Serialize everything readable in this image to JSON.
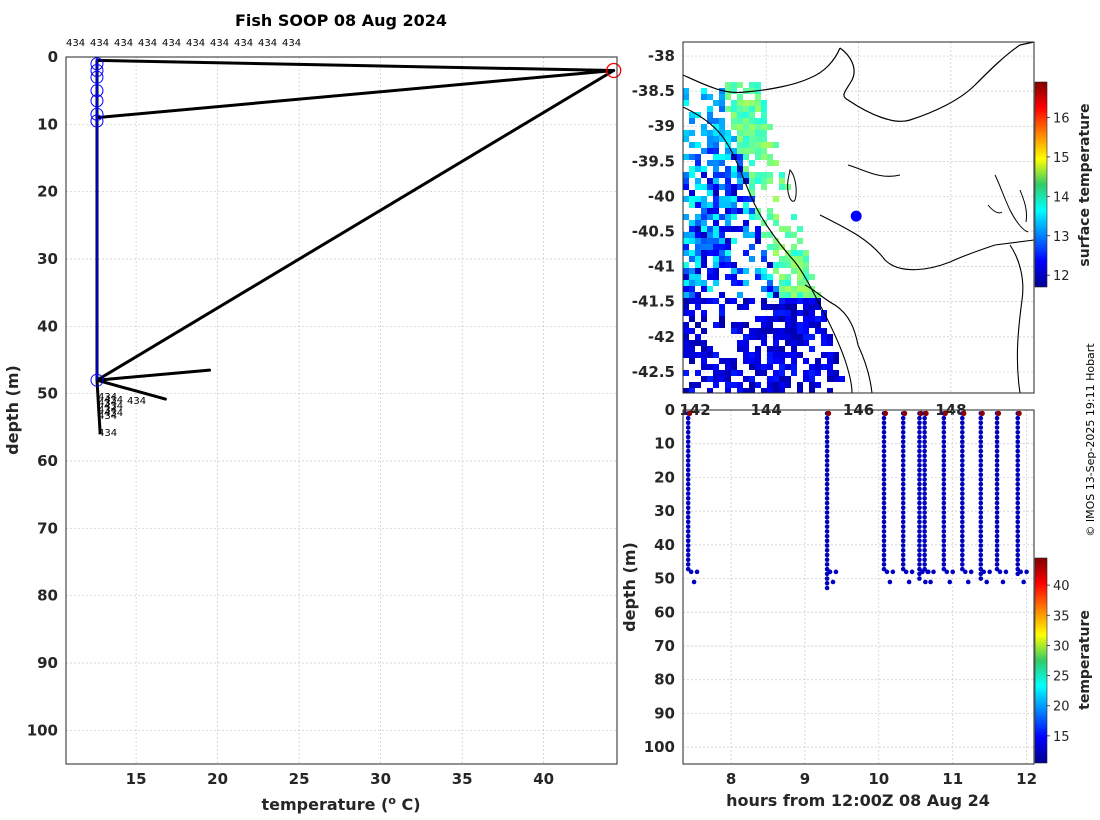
{
  "chart_data": [
    {
      "type": "line",
      "id": "profile",
      "title": "Fish SOOP 08 Aug 2024",
      "xlabel": "temperature (",
      "xlabel_sup": "o",
      "xlabel_end": " C)",
      "ylabel": "depth (m)",
      "xlim": [
        10.7,
        44.5
      ],
      "ylim": [
        0,
        105
      ],
      "y_reversed": true,
      "xticks": [
        15,
        20,
        25,
        30,
        35,
        40
      ],
      "yticks": [
        0,
        10,
        20,
        30,
        40,
        50,
        60,
        70,
        80,
        90,
        100
      ],
      "top_labels": [
        "434",
        "434",
        "434",
        "434",
        "434",
        "434",
        "434",
        "434",
        "434",
        "434"
      ],
      "cast_labels": [
        "434",
        "434",
        "434",
        "434",
        "434",
        "434",
        "434",
        "434",
        "434"
      ],
      "series": [
        {
          "name": "black-profiles",
          "color": "#000000",
          "points": [
            [
              12.6,
              0.5
            ],
            [
              44.3,
              2
            ],
            [
              12.6,
              9
            ],
            [
              12.6,
              48
            ],
            [
              44.3,
              2
            ],
            [
              12.6,
              0.5
            ],
            [
              12.6,
              48
            ],
            [
              19.5,
              46.5
            ],
            [
              12.6,
              48
            ],
            [
              16.8,
              50.8
            ],
            [
              12.6,
              48
            ],
            [
              12.8,
              56
            ]
          ]
        },
        {
          "name": "blue-profile",
          "color": "#0000ff",
          "points": [
            [
              12.6,
              0
            ],
            [
              12.6,
              48
            ]
          ]
        }
      ],
      "markers_blue": [
        [
          12.6,
          1
        ],
        [
          12.6,
          2
        ],
        [
          12.6,
          3
        ],
        [
          12.6,
          5
        ],
        [
          12.6,
          6.5
        ],
        [
          12.6,
          8.5
        ],
        [
          12.6,
          9.5
        ],
        [
          12.6,
          48
        ]
      ],
      "marker_red": [
        44.3,
        2
      ]
    },
    {
      "type": "heatmap",
      "id": "map",
      "xlim": [
        142.2,
        149.8
      ],
      "ylim": [
        -42.8,
        -37.8
      ],
      "yticks": [
        -38,
        -38.5,
        -39,
        -39.5,
        -40,
        -40.5,
        -41,
        -41.5,
        -42,
        -42.5
      ],
      "xticks": [
        142,
        144,
        146,
        148
      ],
      "xtick_labels": [
        "142",
        "144",
        "146",
        "148"
      ],
      "position": {
        "lon": 145.95,
        "lat": -40.28
      },
      "colorbar": {
        "label": "surface temperature",
        "ticks": [
          12,
          13,
          14,
          15,
          16
        ],
        "range": [
          11.7,
          16.9
        ]
      }
    },
    {
      "type": "scatter",
      "id": "time-depth",
      "xlabel": "hours from 12:00Z 08 Aug 24",
      "ylabel": "depth (m)",
      "xlim": [
        7.35,
        12.1
      ],
      "ylim": [
        0,
        105
      ],
      "y_reversed": true,
      "xticks": [
        8,
        9,
        10,
        11,
        12
      ],
      "yticks": [
        0,
        10,
        20,
        30,
        40,
        50,
        60,
        70,
        80,
        90,
        100
      ],
      "casts": [
        {
          "t": 7.42,
          "max": 48
        },
        {
          "t": 9.3,
          "max": 53
        },
        {
          "t": 10.07,
          "max": 48
        },
        {
          "t": 10.33,
          "max": 48
        },
        {
          "t": 10.55,
          "max": 50
        },
        {
          "t": 10.62,
          "max": 48
        },
        {
          "t": 10.88,
          "max": 48
        },
        {
          "t": 11.13,
          "max": 48
        },
        {
          "t": 11.38,
          "max": 50
        },
        {
          "t": 11.6,
          "max": 48
        },
        {
          "t": 11.88,
          "max": 49
        }
      ],
      "colorbar": {
        "label": "temperature",
        "ticks": [
          15,
          20,
          25,
          30,
          35,
          40
        ],
        "range": [
          10.5,
          44.5
        ]
      }
    }
  ],
  "copyright": "© IMOS 13-Sep-2025 19:11 Hobart"
}
